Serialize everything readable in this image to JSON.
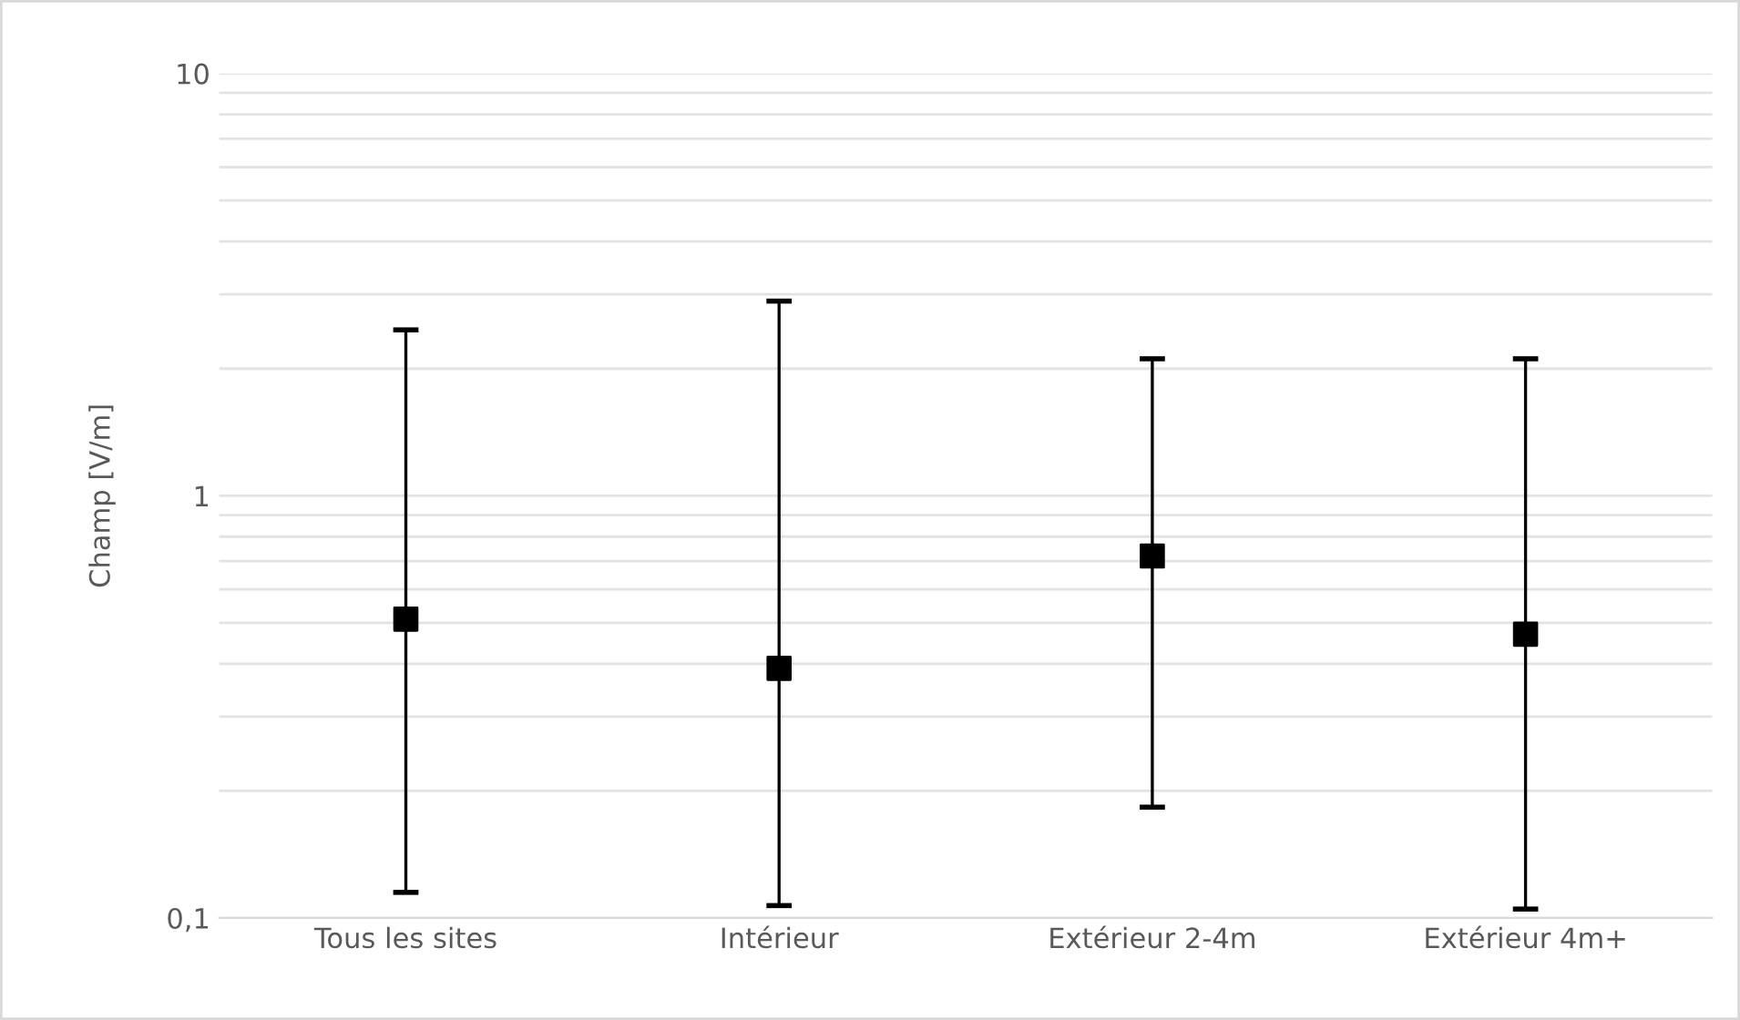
{
  "chart_data": {
    "type": "scatter",
    "ylabel": "Champ [V/m]",
    "categories": [
      "Tous les sites",
      "Intérieur",
      "Extérieur 2-4m",
      "Extérieur 4m+"
    ],
    "values": [
      0.51,
      0.39,
      0.72,
      0.47
    ],
    "errors": [
      [
        0.115,
        2.47
      ],
      [
        0.107,
        2.89
      ],
      [
        0.183,
        2.11
      ],
      [
        0.105,
        2.11
      ]
    ],
    "color": "#000000",
    "marker": "square",
    "log": "y",
    "ylim": [
      0.1,
      10
    ],
    "yticks": [
      {
        "value": 0.1,
        "label": "0,1"
      },
      1,
      10
    ],
    "grid": "y"
  }
}
